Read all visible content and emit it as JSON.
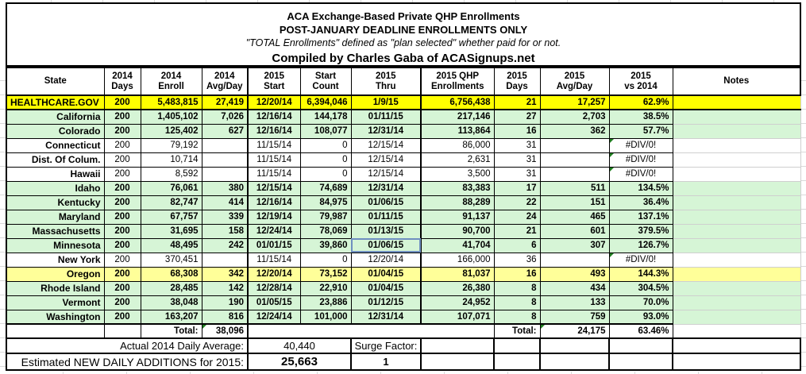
{
  "title": {
    "line1": "ACA Exchange-Based Private QHP Enrollments",
    "line2": "POST-JANUARY DEADLINE ENROLLMENTS ONLY",
    "line3": "\"TOTAL Enrollments\" defined as \"plan selected\" whether paid for or not.",
    "line4": "Compiled by Charles Gaba of ACASignups.net"
  },
  "table": {
    "columns": [
      {
        "line1": "State",
        "line2": ""
      },
      {
        "line1": "2014",
        "line2": "Days"
      },
      {
        "line1": "2014",
        "line2": "Enroll"
      },
      {
        "line1": "2014",
        "line2": "Avg/Day"
      },
      {
        "line1": "2015",
        "line2": "Start"
      },
      {
        "line1": "Start",
        "line2": "Count"
      },
      {
        "line1": "2015",
        "line2": "Thru"
      },
      {
        "line1": "2015 QHP",
        "line2": "Enrollments"
      },
      {
        "line1": "2015",
        "line2": "Days"
      },
      {
        "line1": "2015",
        "line2": "Avg/Day"
      },
      {
        "line1": "2015",
        "line2": "vs 2014"
      },
      {
        "line1": "Notes",
        "line2": ""
      }
    ],
    "rows": [
      {
        "tone": "yellow",
        "cells": [
          "HEALTHCARE.GOV",
          "200",
          "5,483,815",
          "27,419",
          "12/20/14",
          "6,394,046",
          "1/9/15",
          "6,756,438",
          "21",
          "17,257",
          "62.9%",
          ""
        ]
      },
      {
        "tone": "green",
        "cells": [
          "California",
          "200",
          "1,405,102",
          "7,026",
          "12/16/14",
          "144,178",
          "01/11/15",
          "217,146",
          "27",
          "2,703",
          "38.5%",
          ""
        ]
      },
      {
        "tone": "green",
        "cells": [
          "Colorado",
          "200",
          "125,402",
          "627",
          "12/16/14",
          "108,077",
          "12/31/14",
          "113,864",
          "16",
          "362",
          "57.7%",
          ""
        ]
      },
      {
        "tone": "white",
        "err": true,
        "cells": [
          "Connecticut",
          "200",
          "79,192",
          "",
          "11/15/14",
          "0",
          "12/15/14",
          "86,000",
          "31",
          "",
          "#DIV/0!",
          ""
        ]
      },
      {
        "tone": "white",
        "err": true,
        "cells": [
          "Dist. Of Colum.",
          "200",
          "10,714",
          "",
          "11/15/14",
          "0",
          "12/15/14",
          "2,631",
          "31",
          "",
          "#DIV/0!",
          ""
        ]
      },
      {
        "tone": "white",
        "err": true,
        "cells": [
          "Hawaii",
          "200",
          "8,592",
          "",
          "11/15/14",
          "0",
          "12/15/14",
          "3,500",
          "31",
          "",
          "#DIV/0!",
          ""
        ]
      },
      {
        "tone": "green",
        "cells": [
          "Idaho",
          "200",
          "76,061",
          "380",
          "12/15/14",
          "74,689",
          "12/31/14",
          "83,383",
          "17",
          "511",
          "134.5%",
          ""
        ]
      },
      {
        "tone": "green",
        "cells": [
          "Kentucky",
          "200",
          "82,747",
          "414",
          "12/16/14",
          "84,975",
          "01/06/15",
          "88,289",
          "22",
          "151",
          "36.4%",
          ""
        ]
      },
      {
        "tone": "green",
        "cells": [
          "Maryland",
          "200",
          "67,757",
          "339",
          "12/19/14",
          "79,987",
          "01/11/15",
          "91,137",
          "24",
          "465",
          "137.1%",
          ""
        ]
      },
      {
        "tone": "green",
        "cells": [
          "Massachusetts",
          "200",
          "31,695",
          "158",
          "12/24/14",
          "78,069",
          "01/13/15",
          "90,700",
          "21",
          "601",
          "379.5%",
          ""
        ]
      },
      {
        "tone": "green",
        "selected_col": 6,
        "cells": [
          "Minnesota",
          "200",
          "48,495",
          "242",
          "01/01/15",
          "39,860",
          "01/06/15",
          "41,704",
          "6",
          "307",
          "126.7%",
          ""
        ]
      },
      {
        "tone": "white",
        "err": true,
        "cells": [
          "New York",
          "200",
          "370,451",
          "",
          "11/15/14",
          "0",
          "12/20/14",
          "166,000",
          "36",
          "",
          "#DIV/0!",
          ""
        ]
      },
      {
        "tone": "lightyellow",
        "cells": [
          "Oregon",
          "200",
          "68,308",
          "342",
          "12/20/14",
          "73,152",
          "01/04/15",
          "81,037",
          "16",
          "493",
          "144.3%",
          ""
        ]
      },
      {
        "tone": "green",
        "cells": [
          "Rhode Island",
          "200",
          "28,485",
          "142",
          "12/28/14",
          "22,910",
          "01/04/15",
          "26,380",
          "8",
          "434",
          "304.5%",
          ""
        ]
      },
      {
        "tone": "green",
        "cells": [
          "Vermont",
          "200",
          "38,048",
          "190",
          "01/05/15",
          "23,886",
          "01/12/15",
          "24,952",
          "8",
          "133",
          "70.0%",
          ""
        ]
      },
      {
        "tone": "green",
        "cells": [
          "Washington",
          "200",
          "163,207",
          "816",
          "12/24/14",
          "101,000",
          "12/31/14",
          "107,071",
          "8",
          "759",
          "93.0%",
          ""
        ]
      }
    ],
    "totals": {
      "label_left": "Total:",
      "avg_2014": "38,096",
      "label_right": "Total:",
      "avg_2015": "24,175",
      "vs_2014": "63.46%"
    }
  },
  "footer": {
    "actual_label": "Actual 2014 Daily Average:",
    "actual_value": "40,440",
    "surge_label": "Surge Factor:",
    "surge_value": "1",
    "estimated_label": "Estimated NEW DAILY ADDITIONS for 2015:",
    "estimated_value": "25,663"
  },
  "colors": {
    "row_highlight_yellow": "#FFFF00",
    "row_green": "#D6F5D6",
    "row_light_yellow": "#FFFF99",
    "error_marker_green": "#1E7E1E",
    "selected_cell_border": "#6F8FC0"
  }
}
